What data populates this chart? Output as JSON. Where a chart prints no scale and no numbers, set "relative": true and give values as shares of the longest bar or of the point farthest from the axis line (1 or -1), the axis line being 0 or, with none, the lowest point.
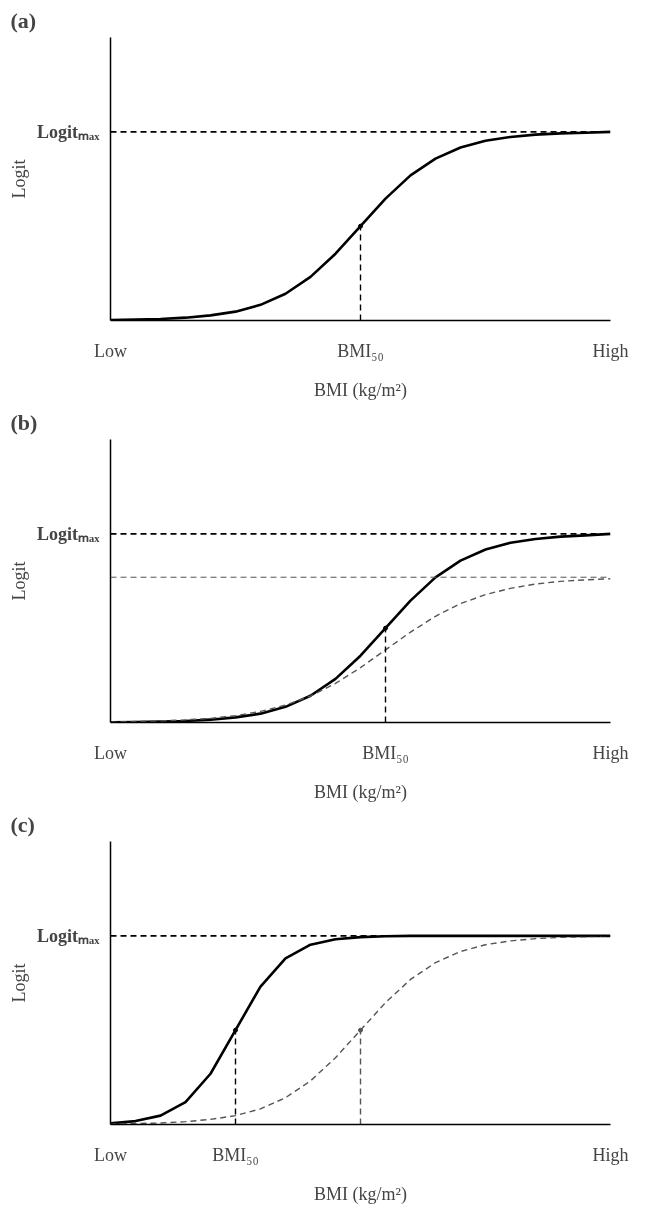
{
  "chart_data": [
    {
      "type": "line",
      "title": "(a)",
      "xlabel": "BMI (kg/m²)",
      "ylabel": "Logit",
      "relative": true,
      "grid": false,
      "categories": [
        "Low",
        null,
        null,
        null,
        null,
        null,
        null,
        null,
        null,
        null,
        "BMI₅₀",
        null,
        null,
        null,
        null,
        null,
        null,
        null,
        null,
        null,
        "High"
      ],
      "ref_lines": [
        {
          "axis": "y",
          "value": 1,
          "label": "Logitₘₐₓ",
          "color": "#000000",
          "line_style": "dashed"
        }
      ],
      "series": [
        {
          "color": "#000000",
          "line_style": "solid",
          "values": [
            0.002,
            0.005,
            0.008,
            0.015,
            0.027,
            0.047,
            0.083,
            0.142,
            0.231,
            0.354,
            0.5,
            0.646,
            0.769,
            0.858,
            0.917,
            0.953,
            0.973,
            0.985,
            0.992,
            0.995,
            1
          ]
        },
        {
          "type": "lollipop",
          "marker": "circle",
          "color": "#000000",
          "line_style": "dashed",
          "values": [
            null,
            null,
            null,
            null,
            null,
            null,
            null,
            null,
            null,
            null,
            0.5,
            null,
            null,
            null,
            null,
            null,
            null,
            null,
            null,
            null,
            null
          ]
        }
      ]
    },
    {
      "type": "line",
      "title": "(b)",
      "xlabel": "BMI (kg/m²)",
      "ylabel": "Logit",
      "relative": true,
      "grid": false,
      "categories": [
        "Low",
        null,
        null,
        null,
        null,
        null,
        null,
        null,
        null,
        null,
        null,
        "BMI₅₀",
        null,
        null,
        null,
        null,
        null,
        null,
        null,
        null,
        "High"
      ],
      "ref_lines": [
        {
          "axis": "y",
          "value": 1,
          "label": "Logitₘₐₓ",
          "color": "#000000",
          "line_style": "dashed"
        },
        {
          "axis": "y",
          "value": 0.77,
          "color": "#555555",
          "line_style": "dashed"
        }
      ],
      "series": [
        {
          "color": "#000000",
          "line_style": "solid",
          "values": [
            0.001,
            0.002,
            0.005,
            0.008,
            0.015,
            0.027,
            0.047,
            0.083,
            0.142,
            0.231,
            0.354,
            0.5,
            0.646,
            0.769,
            0.858,
            0.917,
            0.953,
            0.973,
            0.985,
            0.992,
            1
          ]
        },
        {
          "color": "#555555",
          "line_style": "dashed",
          "values": [
            0.003,
            0.005,
            0.008,
            0.014,
            0.022,
            0.036,
            0.059,
            0.092,
            0.14,
            0.207,
            0.291,
            0.385,
            0.479,
            0.563,
            0.63,
            0.678,
            0.711,
            0.734,
            0.748,
            0.756,
            0.762
          ]
        },
        {
          "type": "lollipop",
          "marker": "circle",
          "color": "#000000",
          "line_style": "dashed",
          "values": [
            null,
            null,
            null,
            null,
            null,
            null,
            null,
            null,
            null,
            null,
            null,
            0.5,
            null,
            null,
            null,
            null,
            null,
            null,
            null,
            null,
            null
          ]
        }
      ]
    },
    {
      "type": "line",
      "title": "(c)",
      "xlabel": "BMI (kg/m²)",
      "ylabel": "Logit",
      "relative": true,
      "grid": false,
      "categories": [
        "Low",
        null,
        null,
        null,
        null,
        "BMI₅₀",
        null,
        null,
        null,
        null,
        null,
        null,
        null,
        null,
        null,
        null,
        null,
        null,
        null,
        null,
        "High"
      ],
      "ref_lines": [
        {
          "axis": "y",
          "value": 1,
          "label": "Logitₘₐₓ",
          "color": "#000000",
          "line_style": "dashed"
        }
      ],
      "series": [
        {
          "color": "#000000",
          "line_style": "solid",
          "values": [
            0.007,
            0.018,
            0.047,
            0.119,
            0.269,
            0.5,
            0.731,
            0.881,
            0.953,
            0.982,
            0.993,
            0.998,
            1,
            1,
            1,
            1,
            1,
            1,
            1,
            1,
            1
          ]
        },
        {
          "color": "#555555",
          "line_style": "dashed",
          "values": [
            0.002,
            0.005,
            0.008,
            0.015,
            0.027,
            0.047,
            0.083,
            0.142,
            0.231,
            0.354,
            0.5,
            0.646,
            0.769,
            0.858,
            0.917,
            0.953,
            0.973,
            0.985,
            0.992,
            0.995,
            1
          ]
        },
        {
          "type": "lollipop",
          "marker": "circle",
          "color": "#000000",
          "line_style": "dashed",
          "values": [
            null,
            null,
            null,
            null,
            null,
            0.5,
            null,
            null,
            null,
            null,
            null,
            null,
            null,
            null,
            null,
            null,
            null,
            null,
            null,
            null,
            null
          ]
        },
        {
          "type": "lollipop",
          "marker": "circle",
          "color": "#555555",
          "line_style": "dashed",
          "values": [
            null,
            null,
            null,
            null,
            null,
            null,
            null,
            null,
            null,
            null,
            0.5,
            null,
            null,
            null,
            null,
            null,
            null,
            null,
            null,
            null,
            null
          ]
        }
      ]
    }
  ]
}
